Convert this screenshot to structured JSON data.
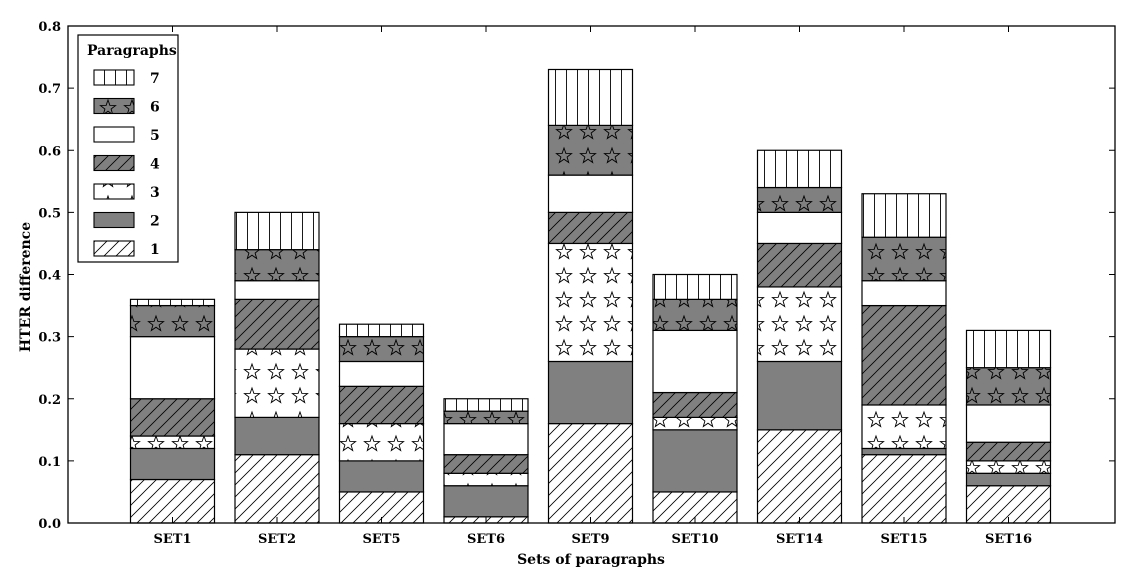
{
  "chart_data": {
    "type": "bar",
    "stacked": true,
    "title": "",
    "xlabel": "Sets of paragraphs",
    "ylabel": "HTER difference",
    "ylim": [
      0,
      0.8
    ],
    "yticks": [
      "0.0",
      "0.1",
      "0.2",
      "0.3",
      "0.4",
      "0.5",
      "0.6",
      "0.7",
      "0.8"
    ],
    "categories": [
      "SET1",
      "SET2",
      "SET5",
      "SET6",
      "SET9",
      "SET10",
      "SET14",
      "SET15",
      "SET16"
    ],
    "legend": {
      "title": "Paragraphs",
      "placement": "top-left",
      "order": [
        "7",
        "6",
        "5",
        "4",
        "3",
        "2",
        "1"
      ]
    },
    "grid": false,
    "series": [
      {
        "name": "1",
        "pattern": "hatch-diagonal",
        "fill": "#ffffff",
        "values": [
          0.07,
          0.11,
          0.05,
          0.01,
          0.16,
          0.05,
          0.15,
          0.11,
          0.06
        ]
      },
      {
        "name": "2",
        "pattern": "solid",
        "fill": "#808080",
        "values": [
          0.05,
          0.06,
          0.05,
          0.05,
          0.1,
          0.1,
          0.11,
          0.01,
          0.02
        ]
      },
      {
        "name": "3",
        "pattern": "stars-white",
        "fill": "#ffffff",
        "values": [
          0.02,
          0.11,
          0.06,
          0.02,
          0.19,
          0.02,
          0.12,
          0.07,
          0.02
        ]
      },
      {
        "name": "4",
        "pattern": "hatch-diagonal",
        "fill": "#808080",
        "values": [
          0.06,
          0.08,
          0.06,
          0.03,
          0.05,
          0.04,
          0.07,
          0.16,
          0.03
        ]
      },
      {
        "name": "5",
        "pattern": "solid",
        "fill": "#ffffff",
        "values": [
          0.1,
          0.03,
          0.04,
          0.05,
          0.06,
          0.1,
          0.05,
          0.04,
          0.06
        ]
      },
      {
        "name": "6",
        "pattern": "stars-gray",
        "fill": "#808080",
        "values": [
          0.05,
          0.05,
          0.04,
          0.02,
          0.08,
          0.05,
          0.04,
          0.07,
          0.06
        ]
      },
      {
        "name": "7",
        "pattern": "vertical-lines",
        "fill": "#ffffff",
        "values": [
          0.01,
          0.06,
          0.02,
          0.02,
          0.09,
          0.04,
          0.06,
          0.07,
          0.06
        ]
      }
    ]
  }
}
